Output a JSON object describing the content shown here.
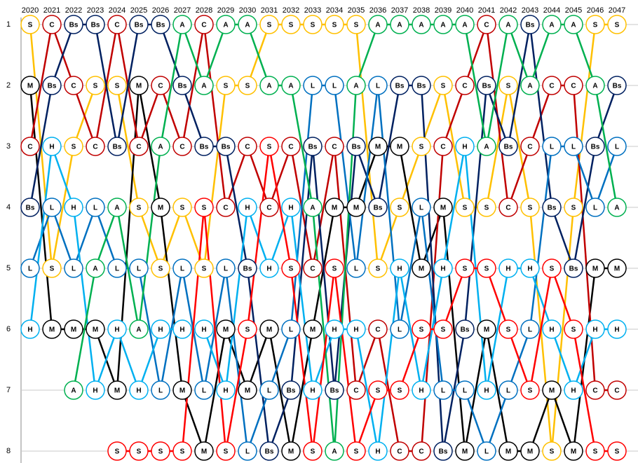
{
  "chart_data": {
    "type": "bump",
    "categories": [
      "2020",
      "2021",
      "2022",
      "2023",
      "2024",
      "2025",
      "2026",
      "2027",
      "2028",
      "2029",
      "2030",
      "2031",
      "2032",
      "2033",
      "2034",
      "2035",
      "2036",
      "2037",
      "2038",
      "2039",
      "2040",
      "2041",
      "2042",
      "2043",
      "2044",
      "2045",
      "2046",
      "2047"
    ],
    "ylim": [
      8,
      1
    ],
    "yticks": [
      1,
      2,
      3,
      4,
      5,
      6,
      7,
      8
    ],
    "grid": true,
    "series": [
      {
        "marker": "S",
        "color": "#ffc000",
        "values": [
          1,
          5,
          3,
          2,
          2,
          4,
          5,
          4,
          5,
          2,
          2,
          1,
          1,
          1,
          1,
          1,
          5,
          4,
          3,
          2,
          4,
          4,
          2,
          4,
          8,
          4,
          1,
          1
        ]
      },
      {
        "marker": "M",
        "color": "#000000",
        "values": [
          2,
          6,
          6,
          6,
          7,
          2,
          4,
          7,
          8,
          6,
          7,
          6,
          8,
          6,
          4,
          4,
          3,
          3,
          5,
          4,
          8,
          6,
          8,
          8,
          7,
          8,
          5,
          5
        ]
      },
      {
        "marker": "C",
        "color": "#c00000",
        "values": [
          3,
          1,
          2,
          3,
          1,
          3,
          2,
          3,
          1,
          4,
          3,
          4,
          3,
          5,
          3,
          7,
          6,
          8,
          8,
          3,
          2,
          1,
          4,
          3,
          2,
          2,
          7,
          7
        ]
      },
      {
        "marker": "Bs",
        "color": "#002060",
        "values": [
          4,
          2,
          1,
          1,
          3,
          1,
          1,
          2,
          3,
          3,
          5,
          8,
          7,
          3,
          7,
          3,
          4,
          2,
          2,
          8,
          6,
          2,
          3,
          1,
          4,
          5,
          3,
          2
        ]
      },
      {
        "marker": "L",
        "color": "#0070c0",
        "values": [
          5,
          4,
          5,
          4,
          5,
          5,
          7,
          5,
          7,
          5,
          8,
          7,
          6,
          2,
          2,
          5,
          2,
          6,
          4,
          7,
          7,
          8,
          7,
          6,
          3,
          3,
          4,
          3
        ]
      },
      {
        "marker": "H",
        "color": "#00b0f0",
        "values": [
          6,
          3,
          4,
          7,
          6,
          7,
          6,
          6,
          6,
          7,
          4,
          5,
          4,
          7,
          6,
          6,
          8,
          5,
          7,
          5,
          3,
          7,
          5,
          5,
          6,
          7,
          6,
          6
        ]
      },
      {
        "marker": "A",
        "color": "#00b050",
        "values": [
          null,
          null,
          7,
          5,
          4,
          6,
          3,
          1,
          2,
          1,
          1,
          2,
          2,
          4,
          8,
          2,
          1,
          1,
          1,
          1,
          1,
          3,
          1,
          2,
          1,
          1,
          2,
          4
        ]
      },
      {
        "marker": "S",
        "color": "#ff0000",
        "values": [
          null,
          null,
          null,
          null,
          8,
          8,
          8,
          8,
          4,
          8,
          6,
          3,
          5,
          8,
          5,
          8,
          7,
          7,
          6,
          6,
          5,
          5,
          6,
          7,
          5,
          6,
          8,
          8
        ]
      }
    ]
  }
}
